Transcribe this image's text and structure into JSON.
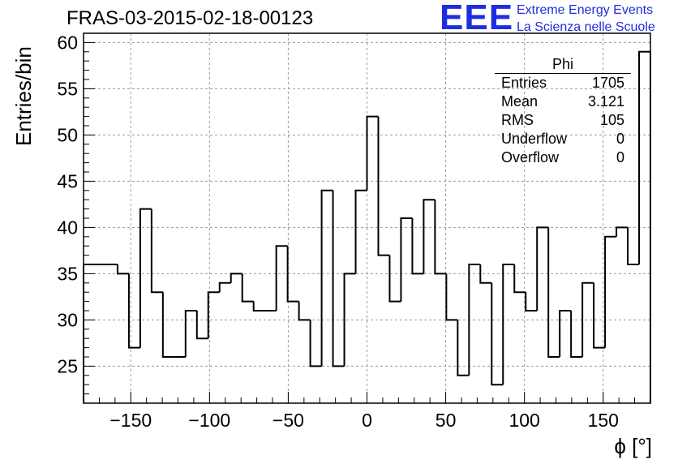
{
  "chart_data": {
    "type": "histogram",
    "title": "FRAS-03-2015-02-18-00123",
    "xlabel": "ϕ [°]",
    "ylabel": "Entries/bin",
    "xlim": [
      -180,
      180
    ],
    "ylim": [
      21,
      61
    ],
    "bin_width": 7.2,
    "grid": true,
    "xticks": [
      -150,
      -100,
      -50,
      0,
      50,
      100,
      150
    ],
    "xtick_labels": [
      "−150",
      "−100",
      "−50",
      "0",
      "50",
      "100",
      "150"
    ],
    "yticks": [
      25,
      30,
      35,
      40,
      45,
      50,
      55,
      60
    ],
    "ytick_labels": [
      "25",
      "30",
      "35",
      "40",
      "45",
      "50",
      "55",
      "60"
    ],
    "values": [
      36,
      36,
      36,
      35,
      27,
      42,
      33,
      26,
      26,
      31,
      28,
      33,
      34,
      35,
      32,
      31,
      31,
      38,
      32,
      30,
      25,
      44,
      25,
      35,
      44,
      52,
      37,
      32,
      41,
      35,
      43,
      35,
      30,
      24,
      36,
      34,
      23,
      36,
      33,
      31,
      40,
      26,
      31,
      26,
      34,
      27,
      39,
      40,
      36,
      59
    ],
    "stats": {
      "name": "Phi",
      "rows": [
        {
          "label": "Entries",
          "value": "1705"
        },
        {
          "label": "Mean",
          "value": "3.121"
        },
        {
          "label": "RMS",
          "value": "105"
        },
        {
          "label": "Underflow",
          "value": "0"
        },
        {
          "label": "Overflow",
          "value": "0"
        }
      ]
    }
  },
  "logo": {
    "mark": "EEE",
    "line1": "Extreme Energy Events",
    "line2": "La Scienza nelle Scuole"
  }
}
